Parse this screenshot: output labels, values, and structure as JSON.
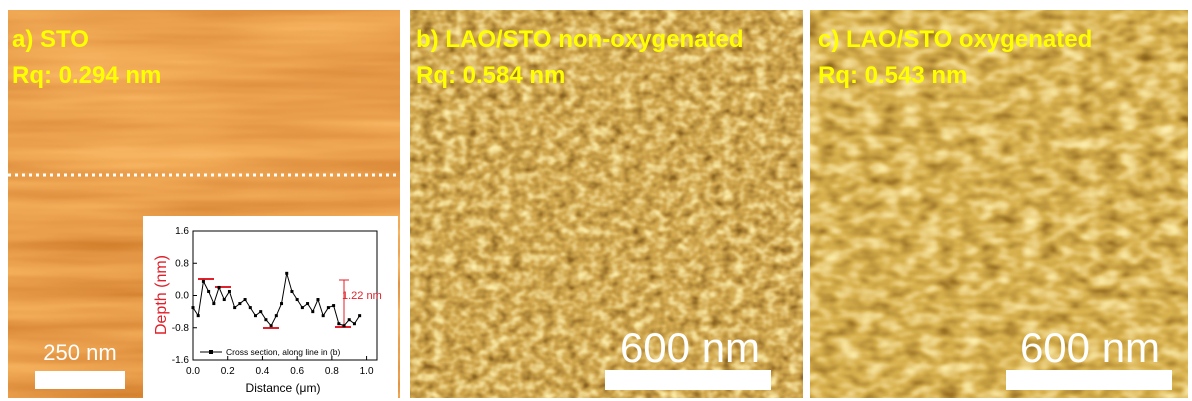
{
  "panels": [
    {
      "label": "a) STO",
      "roughness": "Rq: 0.294 nm",
      "scale_bar": "250 nm"
    },
    {
      "label": "b) LAO/STO non-oxygenated",
      "roughness": "Rq: 0.584 nm",
      "scale_bar": "600 nm"
    },
    {
      "label": "c) LAO/STO oxygenated",
      "roughness": "Rq: 0.543 nm",
      "scale_bar": "600 nm"
    }
  ],
  "chart_data": {
    "type": "line",
    "x_label": "Distance (μm)",
    "y_label": "Depth (nm)",
    "x": [
      0.0,
      0.03,
      0.06,
      0.09,
      0.12,
      0.15,
      0.18,
      0.21,
      0.24,
      0.27,
      0.3,
      0.33,
      0.36,
      0.39,
      0.42,
      0.45,
      0.48,
      0.51,
      0.54,
      0.57,
      0.6,
      0.63,
      0.66,
      0.69,
      0.72,
      0.75,
      0.78,
      0.81,
      0.84,
      0.87,
      0.9,
      0.93,
      0.96
    ],
    "series": [
      {
        "name": "Cross section, along line in (b)",
        "color": "#000000",
        "values": [
          -0.3,
          -0.5,
          0.35,
          0.1,
          -0.2,
          0.2,
          -0.1,
          0.1,
          -0.3,
          -0.2,
          -0.1,
          -0.3,
          -0.5,
          -0.4,
          -0.6,
          -0.75,
          -0.5,
          -0.2,
          0.55,
          0.1,
          -0.1,
          -0.3,
          -0.2,
          -0.4,
          -0.1,
          -0.5,
          -0.3,
          -0.25,
          -0.7,
          -0.75,
          -0.6,
          -0.7,
          -0.5
        ]
      }
    ],
    "xlim": [
      0,
      1.06
    ],
    "ylim": [
      -1.6,
      1.6
    ],
    "xticks": [
      {
        "value": 0,
        "label": "0.0"
      },
      0.2,
      0.4,
      0.6,
      0.8,
      {
        "value": 1,
        "label": "1.0"
      }
    ],
    "yticks": [
      -1.6,
      -0.8,
      {
        "value": 0,
        "label": "0.0"
      },
      0.8,
      1.6
    ],
    "annotation": "1.22 nm"
  }
}
